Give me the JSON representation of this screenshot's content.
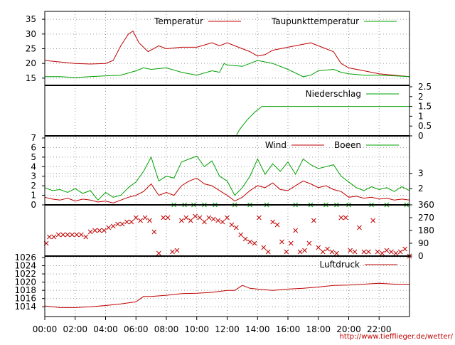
{
  "colors": {
    "red": "#c00000",
    "green": "#00a000"
  },
  "footer_url": "http://www.tiefflieger.de/wetter/",
  "x_axis": {
    "ticks": [
      "00:00",
      "02:00",
      "04:00",
      "06:00",
      "08:00",
      "10:00",
      "12:00",
      "14:00",
      "16:00",
      "18:00",
      "20:00",
      "22:00"
    ],
    "range_hours": [
      0,
      24
    ]
  },
  "chart_data": [
    {
      "id": "temp",
      "type": "line",
      "ylim": [
        14,
        36
      ],
      "y_ticks_left": [
        "15",
        "20",
        "25",
        "30",
        "35"
      ],
      "legend_placement": "top",
      "series": [
        {
          "name": "Temperatur",
          "color": "#c00000",
          "x": [
            0,
            1,
            2,
            3,
            4,
            4.5,
            5,
            5.5,
            5.8,
            6.2,
            6.8,
            7.5,
            8,
            9,
            10,
            11,
            11.5,
            12,
            13,
            13.5,
            14,
            14.5,
            15,
            16,
            17,
            17.5,
            18,
            19,
            19.5,
            20,
            21,
            22,
            23,
            24
          ],
          "y": [
            21,
            20.5,
            20,
            19.8,
            20,
            21,
            26,
            30,
            31,
            27,
            24,
            26,
            25,
            25.5,
            25.5,
            27,
            26,
            27,
            25,
            24,
            22.5,
            23,
            24.5,
            25.5,
            26.5,
            27,
            26,
            24,
            20,
            18.5,
            17.5,
            16.5,
            16,
            15.5
          ]
        },
        {
          "name": "Taupunkttemperatur",
          "color": "#00a000",
          "x": [
            0,
            1,
            2,
            3,
            4,
            5,
            6,
            6.5,
            7,
            8,
            9,
            9.5,
            10,
            11,
            11.5,
            11.8,
            12,
            13,
            14,
            15,
            16,
            17,
            17.5,
            18,
            19,
            19.5,
            20,
            21,
            22,
            23,
            24
          ],
          "y": [
            15.5,
            15.5,
            15.2,
            15.5,
            15.8,
            16,
            17.5,
            18.5,
            18,
            18.5,
            17,
            16.5,
            16,
            17.5,
            17,
            20,
            19.5,
            19,
            21,
            20,
            18,
            15.5,
            16,
            17.5,
            18,
            17,
            16.5,
            16,
            16,
            15.8,
            15.5
          ]
        }
      ]
    },
    {
      "id": "rain",
      "type": "line",
      "ylim": [
        0,
        2.5
      ],
      "y_ticks_right": [
        "0",
        "0.5",
        "1",
        "1.5",
        "2",
        "2.5"
      ],
      "legend_placement": "top-right",
      "series": [
        {
          "name": "Niederschlag",
          "color": "#00a000",
          "x": [
            0,
            12.6,
            12.8,
            13.3,
            13.8,
            14.3,
            16,
            18,
            20,
            22,
            24
          ],
          "y": [
            0,
            0,
            0.3,
            0.8,
            1.2,
            1.5,
            1.5,
            1.5,
            1.5,
            1.5,
            1.5
          ]
        }
      ]
    },
    {
      "id": "wind",
      "type": "line",
      "ylim": [
        0,
        7
      ],
      "y_ticks_left": [
        "0",
        "1",
        "2",
        "3",
        "4",
        "5",
        "6",
        "7"
      ],
      "y_ticks_right": [
        {
          "label": "2",
          "value": 1.7
        },
        {
          "label": "3",
          "value": 3.3
        }
      ],
      "legend_placement": "top",
      "series": [
        {
          "name": "Wind",
          "color": "#c00000",
          "x": [
            0,
            0.5,
            1,
            1.5,
            2,
            2.5,
            3,
            3.5,
            4,
            4.5,
            5,
            5.5,
            6,
            6.5,
            7,
            7.5,
            8,
            8.5,
            9,
            9.5,
            10,
            10.5,
            11,
            11.5,
            12,
            12.5,
            13,
            13.5,
            14,
            14.5,
            15,
            15.5,
            16,
            16.5,
            17,
            17.5,
            18,
            18.5,
            19,
            19.5,
            20,
            20.5,
            21,
            21.5,
            22,
            22.5,
            23,
            23.5,
            24
          ],
          "y": [
            0.8,
            0.6,
            0.5,
            0.7,
            0.4,
            0.6,
            0.5,
            0.3,
            0.4,
            0.2,
            0.5,
            0.8,
            1.0,
            1.4,
            2.2,
            1.0,
            1.3,
            1.0,
            2.0,
            2.5,
            2.8,
            2.2,
            2.0,
            1.5,
            1.0,
            0.4,
            0.8,
            1.5,
            2.0,
            1.8,
            2.3,
            1.6,
            1.5,
            2.0,
            2.5,
            2.2,
            1.8,
            2.0,
            1.6,
            1.4,
            0.8,
            0.9,
            0.7,
            0.8,
            0.6,
            0.7,
            0.5,
            0.6,
            0.5
          ]
        },
        {
          "name": "Boeen",
          "color": "#00a000",
          "x": [
            0,
            0.5,
            1,
            1.5,
            2,
            2.5,
            3,
            3.5,
            4,
            4.5,
            5,
            5.5,
            6,
            6.5,
            7,
            7.5,
            8,
            8.5,
            9,
            9.5,
            10,
            10.5,
            11,
            11.5,
            12,
            12.5,
            13,
            13.5,
            14,
            14.5,
            15,
            15.5,
            16,
            16.5,
            17,
            17.5,
            18,
            18.5,
            19,
            19.5,
            20,
            20.5,
            21,
            21.5,
            22,
            22.5,
            23,
            23.5,
            24
          ],
          "y": [
            1.8,
            1.5,
            1.6,
            1.3,
            1.7,
            1.2,
            1.5,
            0.5,
            1.3,
            0.8,
            1.0,
            1.8,
            2.4,
            3.5,
            5.0,
            2.5,
            3.0,
            2.8,
            4.5,
            4.8,
            5.1,
            4.0,
            4.6,
            3.0,
            2.5,
            1.0,
            1.8,
            3.0,
            4.8,
            3.2,
            4.3,
            3.5,
            4.5,
            3.2,
            4.8,
            4.2,
            3.8,
            4.0,
            4.2,
            3.0,
            2.4,
            1.8,
            1.5,
            1.9,
            1.6,
            1.8,
            1.4,
            1.9,
            1.5
          ]
        }
      ]
    },
    {
      "id": "direction",
      "type": "scatter",
      "ylim": [
        0,
        360
      ],
      "y_ticks_right": [
        "0",
        "90",
        "180",
        "270",
        "360"
      ],
      "series": [
        {
          "color": "#c00000",
          "x": [
            0.1,
            0.3,
            0.6,
            0.9,
            1.2,
            1.5,
            1.8,
            2.1,
            2.4,
            2.7,
            3.0,
            3.3,
            3.6,
            3.9,
            4.2,
            4.5,
            4.8,
            5.1,
            5.4,
            5.7,
            6.0,
            6.3,
            6.6,
            6.9,
            7.2,
            7.5,
            7.8,
            8.1,
            8.4,
            8.7,
            9.0,
            9.3,
            9.6,
            9.9,
            10.2,
            10.5,
            10.8,
            11.1,
            11.4,
            11.7,
            12.0,
            12.3,
            12.6,
            12.9,
            13.2,
            13.5,
            13.8,
            14.1,
            14.4,
            14.7,
            15.0,
            15.3,
            15.6,
            15.9,
            16.2,
            16.5,
            16.8,
            17.1,
            17.4,
            17.7,
            18.0,
            18.3,
            18.6,
            18.9,
            19.2,
            19.5,
            19.8,
            20.1,
            20.4,
            20.7,
            21.0,
            21.3,
            21.6,
            21.9,
            22.2,
            22.5,
            22.8,
            23.1,
            23.4,
            23.7,
            24.0
          ],
          "y": [
            90,
            135,
            135,
            150,
            150,
            150,
            150,
            150,
            150,
            135,
            170,
            180,
            180,
            180,
            200,
            210,
            225,
            225,
            240,
            240,
            270,
            250,
            270,
            250,
            170,
            20,
            270,
            270,
            30,
            40,
            250,
            270,
            250,
            280,
            270,
            240,
            270,
            260,
            250,
            240,
            270,
            220,
            200,
            150,
            120,
            100,
            90,
            270,
            60,
            30,
            240,
            220,
            100,
            30,
            90,
            180,
            30,
            40,
            90,
            250,
            60,
            30,
            50,
            30,
            20,
            270,
            270,
            40,
            30,
            200,
            30,
            30,
            250,
            30,
            20,
            40,
            30,
            20,
            30,
            50,
            0
          ]
        },
        {
          "color": "#00a000",
          "x": [
            8.5,
            9.2,
            9.8,
            10.5,
            11.2,
            12.5,
            13.5,
            14.6,
            16.5,
            17.5,
            18.5,
            19.2,
            20.0,
            21.5,
            22.5,
            23.8
          ],
          "y": [
            360,
            360,
            360,
            360,
            360,
            360,
            360,
            360,
            360,
            360,
            360,
            360,
            360,
            360,
            360,
            360
          ]
        }
      ]
    },
    {
      "id": "pressure",
      "type": "line",
      "ylim": [
        1013,
        1026
      ],
      "y_ticks_left": [
        "1014",
        "1016",
        "1018",
        "1020",
        "1022",
        "1024",
        "1026"
      ],
      "legend_placement": "top-right",
      "series": [
        {
          "name": "Luftdruck",
          "color": "#c00000",
          "x": [
            0,
            1,
            2,
            3,
            4,
            5,
            6,
            6.5,
            7,
            8,
            9,
            10,
            11,
            12,
            12.5,
            13,
            13.5,
            14,
            15,
            16,
            17,
            18,
            19,
            20,
            21,
            22,
            23,
            24
          ],
          "y": [
            1014.2,
            1013.8,
            1013.8,
            1014.0,
            1014.3,
            1014.7,
            1015.2,
            1016.5,
            1016.5,
            1016.8,
            1017.2,
            1017.3,
            1017.5,
            1018.0,
            1018.0,
            1019.2,
            1018.5,
            1018.3,
            1018.0,
            1018.3,
            1018.5,
            1018.8,
            1019.2,
            1019.3,
            1019.5,
            1019.7,
            1019.5,
            1019.5
          ]
        }
      ]
    }
  ]
}
